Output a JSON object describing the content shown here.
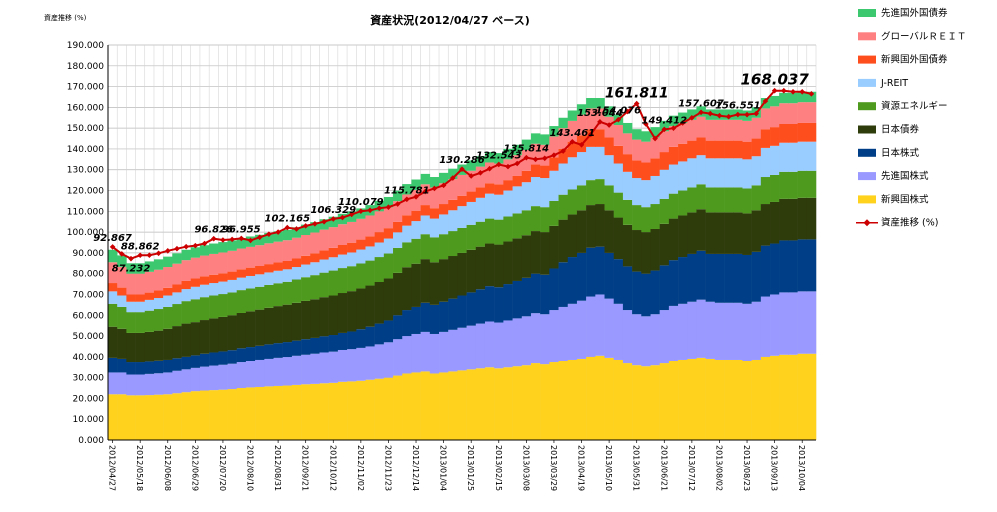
{
  "chart_data": {
    "type": "stacked-bar",
    "title": "資産状況(2012/04/27 ベース)",
    "ylabel": "資産推移 (%)",
    "ylim": [
      0,
      190
    ],
    "y_ticks": [
      "0.000",
      "10.000",
      "20.000",
      "30.000",
      "40.000",
      "50.000",
      "60.000",
      "70.000",
      "80.000",
      "90.000",
      "100.000",
      "110.000",
      "120.000",
      "130.000",
      "140.000",
      "150.000",
      "160.000",
      "170.000",
      "180.000",
      "190.000"
    ],
    "grid": true,
    "legend_position": "right",
    "x_tick_labels": [
      "2012/04/27",
      "2012/05/18",
      "2012/06/08",
      "2012/06/29",
      "2012/07/20",
      "2012/08/10",
      "2012/08/31",
      "2012/09/21",
      "2012/10/12",
      "2012/11/02",
      "2012/11/23",
      "2012/12/14",
      "2013/01/04",
      "2013/01/25",
      "2013/02/15",
      "2013/03/08",
      "2013/03/29",
      "2013/04/19",
      "2013/05/10",
      "2013/05/31",
      "2013/06/21",
      "2013/07/12",
      "2013/08/02",
      "2013/08/23",
      "2013/09/13",
      "2013/10/04"
    ],
    "series": [
      {
        "name": "新興国株式",
        "color": "#FFD21E",
        "values": [
          22.0,
          22.0,
          21.5,
          21.5,
          21.6,
          21.8,
          22.0,
          22.5,
          23.0,
          23.5,
          23.8,
          24.0,
          24.2,
          24.5,
          25.0,
          25.3,
          25.5,
          25.8,
          26.0,
          26.2,
          26.5,
          26.8,
          27.0,
          27.3,
          27.5,
          28.0,
          28.2,
          28.5,
          29.0,
          29.5,
          30.0,
          31.0,
          32.0,
          32.5,
          33.0,
          32.0,
          32.5,
          33.0,
          33.5,
          34.0,
          34.5,
          35.0,
          34.5,
          35.0,
          35.5,
          36.0,
          37.0,
          36.5,
          37.5,
          38.0,
          38.5,
          39.0,
          40.0,
          40.5,
          39.5,
          38.5,
          37.0,
          36.0,
          35.5,
          36.0,
          37.0,
          38.0,
          38.5,
          39.0,
          39.5,
          39.0,
          38.5,
          38.5,
          38.5,
          38.0,
          38.5,
          40.0,
          40.5,
          41.0,
          41.0,
          41.5,
          41.5
        ]
      },
      {
        "name": "先進国株式",
        "color": "#9999FF",
        "values": [
          10.5,
          10.5,
          10.0,
          10.0,
          10.2,
          10.3,
          10.5,
          10.8,
          11.0,
          11.2,
          11.5,
          11.8,
          12.0,
          12.2,
          12.5,
          12.7,
          13.0,
          13.2,
          13.5,
          13.7,
          14.0,
          14.2,
          14.5,
          14.8,
          15.0,
          15.3,
          15.5,
          15.8,
          16.0,
          16.5,
          17.0,
          17.5,
          18.0,
          18.5,
          19.0,
          19.0,
          19.5,
          20.0,
          20.5,
          21.0,
          21.5,
          22.0,
          22.0,
          22.5,
          23.0,
          23.5,
          24.0,
          24.0,
          25.0,
          26.0,
          27.0,
          28.0,
          29.0,
          29.5,
          28.5,
          27.0,
          25.5,
          24.5,
          24.0,
          24.5,
          25.5,
          26.5,
          27.0,
          27.5,
          28.0,
          27.5,
          27.5,
          27.5,
          27.5,
          27.5,
          28.0,
          29.0,
          29.5,
          30.0,
          30.0,
          30.0,
          30.0
        ]
      },
      {
        "name": "日本株式",
        "color": "#003F87",
        "values": [
          7.0,
          6.5,
          6.0,
          6.0,
          6.0,
          6.0,
          6.0,
          6.0,
          6.0,
          6.0,
          6.2,
          6.3,
          6.4,
          6.5,
          6.6,
          6.7,
          6.8,
          7.0,
          7.1,
          7.2,
          7.3,
          7.5,
          7.6,
          7.8,
          8.0,
          8.2,
          8.5,
          9.0,
          9.5,
          10.0,
          10.5,
          11.5,
          12.5,
          13.0,
          14.0,
          14.0,
          14.5,
          15.0,
          15.5,
          16.0,
          16.5,
          17.0,
          17.0,
          17.5,
          18.0,
          18.5,
          19.0,
          19.0,
          20.0,
          21.5,
          22.5,
          23.0,
          23.5,
          23.0,
          22.0,
          21.5,
          21.0,
          20.5,
          20.5,
          21.0,
          21.5,
          22.0,
          22.5,
          23.0,
          23.5,
          23.0,
          23.5,
          23.5,
          23.5,
          23.5,
          24.0,
          24.5,
          24.5,
          25.0,
          25.0,
          25.0,
          25.0
        ]
      },
      {
        "name": "日本債券",
        "color": "#2E3B0B",
        "values": [
          15.0,
          14.5,
          14.0,
          14.0,
          14.2,
          14.5,
          15.0,
          15.5,
          16.0,
          16.0,
          16.2,
          16.4,
          16.6,
          16.8,
          17.0,
          17.2,
          17.4,
          17.6,
          17.8,
          18.0,
          18.2,
          18.4,
          18.6,
          18.8,
          19.0,
          19.2,
          19.4,
          19.6,
          19.8,
          20.0,
          20.2,
          20.4,
          20.6,
          20.8,
          21.0,
          20.5,
          20.5,
          20.5,
          20.5,
          20.5,
          20.5,
          20.5,
          20.5,
          20.5,
          20.5,
          20.5,
          20.5,
          20.5,
          20.5,
          20.5,
          20.5,
          20.5,
          20.5,
          20.5,
          20.5,
          20.0,
          20.0,
          20.0,
          20.0,
          20.0,
          20.0,
          20.0,
          20.0,
          20.0,
          20.0,
          20.0,
          20.0,
          20.0,
          20.0,
          20.0,
          20.0,
          20.0,
          20.0,
          20.0,
          20.0,
          20.0,
          20.0
        ]
      },
      {
        "name": "資源エネルギー",
        "color": "#4E9A1E",
        "values": [
          11.0,
          10.5,
          10.0,
          10.0,
          10.2,
          10.4,
          10.5,
          10.6,
          10.8,
          11.0,
          11.0,
          11.0,
          11.0,
          11.0,
          11.0,
          11.0,
          11.0,
          11.0,
          11.0,
          11.0,
          11.2,
          11.4,
          11.6,
          11.8,
          12.0,
          12.0,
          12.0,
          12.0,
          12.0,
          12.0,
          12.0,
          12.0,
          12.0,
          12.0,
          12.0,
          12.0,
          12.0,
          12.0,
          12.0,
          12.0,
          12.0,
          12.0,
          12.0,
          12.0,
          12.0,
          12.0,
          12.0,
          12.0,
          12.0,
          12.0,
          12.0,
          12.0,
          12.0,
          12.0,
          12.0,
          12.0,
          12.0,
          12.0,
          12.0,
          12.0,
          12.0,
          12.0,
          12.0,
          12.0,
          12.0,
          12.0,
          12.0,
          12.0,
          12.0,
          12.0,
          12.0,
          13.0,
          13.0,
          13.0,
          13.0,
          13.0,
          13.0
        ]
      },
      {
        "name": "J-REIT",
        "color": "#99CCFF",
        "values": [
          6.0,
          5.5,
          5.0,
          5.0,
          5.2,
          5.3,
          5.5,
          5.6,
          5.8,
          6.0,
          6.0,
          6.0,
          6.0,
          6.0,
          6.0,
          6.0,
          6.0,
          6.0,
          6.0,
          6.0,
          6.0,
          6.1,
          6.2,
          6.3,
          6.4,
          6.5,
          6.6,
          6.7,
          6.8,
          7.0,
          7.2,
          7.5,
          8.0,
          8.5,
          9.0,
          9.0,
          9.5,
          10.0,
          10.5,
          11.0,
          11.5,
          12.0,
          12.0,
          12.5,
          13.0,
          13.5,
          14.0,
          14.0,
          14.5,
          15.0,
          15.5,
          16.0,
          16.0,
          15.5,
          14.5,
          14.0,
          13.5,
          13.0,
          13.0,
          13.5,
          14.0,
          14.0,
          14.0,
          14.0,
          14.0,
          14.0,
          14.0,
          14.0,
          14.0,
          14.0,
          14.0,
          14.0,
          14.0,
          14.0,
          14.0,
          14.0,
          14.0
        ]
      },
      {
        "name": "新興国外国債券",
        "color": "#FF4E1E",
        "values": [
          4.0,
          3.8,
          3.5,
          3.5,
          3.5,
          3.6,
          3.7,
          3.8,
          3.9,
          4.0,
          4.0,
          4.0,
          4.0,
          4.0,
          4.0,
          4.0,
          4.0,
          4.0,
          4.0,
          4.0,
          4.1,
          4.2,
          4.3,
          4.4,
          4.5,
          4.6,
          4.7,
          4.8,
          4.9,
          5.0,
          5.0,
          5.0,
          5.0,
          5.0,
          5.0,
          5.0,
          5.0,
          5.0,
          5.0,
          5.0,
          5.0,
          5.0,
          5.0,
          5.0,
          5.0,
          5.5,
          6.0,
          6.0,
          6.5,
          7.0,
          7.5,
          8.0,
          8.5,
          8.5,
          8.5,
          8.5,
          8.5,
          8.5,
          8.5,
          8.5,
          8.5,
          8.5,
          8.5,
          8.5,
          8.5,
          8.5,
          8.5,
          8.5,
          8.5,
          8.5,
          8.5,
          9.0,
          9.0,
          9.0,
          9.0,
          9.0,
          9.0
        ]
      },
      {
        "name": "グローバルＲＥＩＴ",
        "color": "#FF8080",
        "values": [
          10.0,
          10.0,
          10.0,
          10.0,
          10.0,
          10.0,
          10.0,
          10.0,
          10.0,
          10.0,
          10.0,
          10.0,
          10.0,
          10.0,
          10.0,
          10.0,
          10.0,
          10.0,
          10.0,
          10.0,
          10.0,
          10.0,
          10.0,
          10.0,
          10.0,
          10.0,
          10.0,
          10.0,
          10.0,
          10.0,
          10.0,
          10.0,
          10.0,
          10.0,
          10.0,
          10.0,
          10.0,
          10.0,
          10.0,
          10.0,
          10.0,
          10.0,
          10.0,
          10.0,
          10.0,
          10.0,
          10.0,
          10.0,
          10.0,
          10.0,
          10.0,
          10.0,
          10.0,
          10.0,
          10.0,
          10.0,
          10.0,
          10.0,
          10.0,
          10.0,
          10.0,
          10.0,
          10.0,
          10.0,
          10.0,
          10.0,
          10.0,
          10.0,
          10.0,
          10.0,
          10.0,
          10.0,
          10.0,
          10.0,
          10.0,
          10.0,
          10.0
        ]
      },
      {
        "name": "先進国外国債券",
        "color": "#3CC86E",
        "values": [
          6.0,
          5.5,
          5.0,
          5.0,
          5.0,
          5.0,
          5.0,
          5.0,
          5.0,
          5.0,
          5.0,
          5.0,
          5.0,
          5.0,
          5.0,
          5.0,
          5.0,
          5.0,
          5.0,
          5.0,
          5.0,
          5.0,
          5.0,
          5.0,
          5.0,
          5.0,
          5.0,
          5.0,
          5.0,
          5.0,
          5.0,
          5.0,
          5.0,
          5.0,
          5.0,
          5.0,
          5.0,
          5.0,
          5.0,
          5.0,
          5.0,
          5.0,
          5.0,
          5.0,
          5.0,
          5.0,
          5.0,
          5.0,
          5.0,
          5.0,
          5.0,
          5.0,
          5.0,
          5.0,
          5.0,
          5.0,
          5.0,
          5.0,
          5.0,
          5.0,
          5.0,
          5.0,
          5.0,
          5.0,
          5.0,
          5.0,
          5.0,
          5.0,
          5.0,
          5.0,
          5.0,
          5.0,
          5.0,
          5.0,
          5.0,
          5.0,
          5.0
        ]
      }
    ],
    "line_series": {
      "name": "資産推移 (%)",
      "color": "#CC0000",
      "values": [
        92.867,
        89.5,
        87.232,
        88.862,
        88.9,
        89.8,
        91.0,
        92.0,
        93.0,
        93.5,
        94.5,
        96.826,
        96.2,
        96.5,
        96.955,
        96.0,
        97.5,
        99.0,
        100.0,
        102.165,
        101.5,
        103.0,
        104.0,
        105.0,
        106.329,
        107.0,
        108.5,
        110.079,
        110.5,
        111.5,
        112.0,
        113.5,
        115.781,
        117.0,
        119.5,
        121.0,
        122.5,
        126.0,
        130.286,
        127.0,
        128.5,
        130.5,
        132.543,
        131.5,
        133.0,
        135.814,
        135.0,
        135.5,
        137.0,
        139.0,
        143.461,
        142.0,
        147.0,
        153.044,
        151.5,
        154.076,
        158.0,
        161.811,
        152.0,
        145.0,
        149.412,
        150.0,
        152.5,
        155.0,
        157.607,
        157.0,
        156.0,
        155.5,
        156.551,
        156.5,
        157.0,
        163.0,
        168.037,
        168.0,
        167.5,
        167.5,
        166.5
      ]
    },
    "annotations": [
      {
        "index": 0,
        "text": "92.867",
        "size": 10
      },
      {
        "index": 2,
        "text": "87.232",
        "size": 10
      },
      {
        "index": 3,
        "text": "88.862",
        "size": 10
      },
      {
        "index": 11,
        "text": "96.826",
        "size": 10
      },
      {
        "index": 14,
        "text": "96.955",
        "size": 10
      },
      {
        "index": 19,
        "text": "102.165",
        "size": 10
      },
      {
        "index": 24,
        "text": "106.329",
        "size": 10
      },
      {
        "index": 27,
        "text": "110.079",
        "size": 10
      },
      {
        "index": 32,
        "text": "115.781",
        "size": 10
      },
      {
        "index": 38,
        "text": "130.286",
        "size": 10
      },
      {
        "index": 42,
        "text": "132.543",
        "size": 10
      },
      {
        "index": 45,
        "text": "135.814",
        "size": 10
      },
      {
        "index": 50,
        "text": "143.461",
        "size": 10
      },
      {
        "index": 53,
        "text": "153.044",
        "size": 10
      },
      {
        "index": 55,
        "text": "154.076",
        "size": 10
      },
      {
        "index": 57,
        "text": "161.811",
        "size": 14
      },
      {
        "index": 60,
        "text": "149.412",
        "size": 10
      },
      {
        "index": 64,
        "text": "157.607",
        "size": 10
      },
      {
        "index": 68,
        "text": "156.551",
        "size": 10
      },
      {
        "index": 72,
        "text": "168.037",
        "size": 15
      }
    ]
  }
}
